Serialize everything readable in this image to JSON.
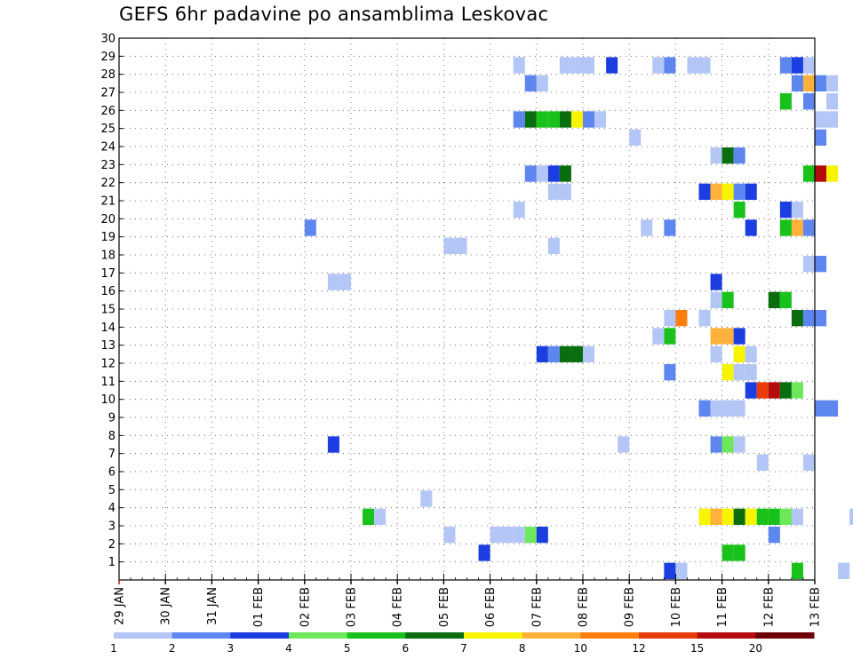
{
  "chart_data": {
    "type": "heatmap",
    "title": "GEFS 6hr padavine po ansamblima Leskovac",
    "x_tick_labels": [
      "29 JAN",
      "30 JAN",
      "31 JAN",
      "01 FEB",
      "02 FEB",
      "03 FEB",
      "04 FEB",
      "05 FEB",
      "06 FEB",
      "07 FEB",
      "08 FEB",
      "09 FEB",
      "10 FEB",
      "11 FEB",
      "12 FEB",
      "13 FEB"
    ],
    "y_tick_labels": [
      "1",
      "2",
      "3",
      "4",
      "5",
      "6",
      "7",
      "8",
      "9",
      "10",
      "11",
      "12",
      "13",
      "14",
      "15",
      "16",
      "17",
      "18",
      "19",
      "20",
      "21",
      "22",
      "23",
      "24",
      "25",
      "26",
      "27",
      "28",
      "29",
      "30"
    ],
    "ylim": [
      0,
      30
    ],
    "x_step_hours": 6,
    "steps_per_day": 4,
    "grid": true,
    "legend": {
      "placement": "bottom",
      "labels": [
        "1",
        "2",
        "3",
        "4",
        "5",
        "6",
        "7",
        "8",
        "10",
        "12",
        "15",
        "20"
      ],
      "colors": [
        "#b3c6f5",
        "#5e86ef",
        "#1c3ee0",
        "#6ce85a",
        "#18c21a",
        "#0a6e10",
        "#f6f400",
        "#ffb13a",
        "#ff7d0c",
        "#e83c0c",
        "#b40c0c",
        "#6e0008"
      ]
    },
    "cells": [
      {
        "x": "09 FEB 18z",
        "y": 0,
        "v": 3
      },
      {
        "x": "10 FEB 00z",
        "y": 0,
        "v": 1
      },
      {
        "x": "12 FEB 12z",
        "y": 0,
        "v": 5
      },
      {
        "x": "13 FEB 12z",
        "y": 0,
        "v": 1
      },
      {
        "x": "11 FEB 00z",
        "y": 1,
        "v": 5
      },
      {
        "x": "11 FEB 06z",
        "y": 1,
        "v": 5
      },
      {
        "x": "05 FEB 18z",
        "y": 1,
        "v": 3
      },
      {
        "x": "05 FEB 00z",
        "y": 2,
        "v": 1
      },
      {
        "x": "06 FEB 00z",
        "y": 2,
        "v": 1
      },
      {
        "x": "06 FEB 06z",
        "y": 2,
        "v": 1
      },
      {
        "x": "06 FEB 12z",
        "y": 2,
        "v": 1
      },
      {
        "x": "06 FEB 18z",
        "y": 2,
        "v": 4
      },
      {
        "x": "07 FEB 00z",
        "y": 2,
        "v": 3
      },
      {
        "x": "12 FEB 00z",
        "y": 2,
        "v": 2
      },
      {
        "x": "03 FEB 06z",
        "y": 3,
        "v": 5
      },
      {
        "x": "03 FEB 12z",
        "y": 3,
        "v": 1
      },
      {
        "x": "10 FEB 12z",
        "y": 3,
        "v": 7
      },
      {
        "x": "10 FEB 18z",
        "y": 3,
        "v": 8
      },
      {
        "x": "11 FEB 00z",
        "y": 3,
        "v": 7
      },
      {
        "x": "11 FEB 06z",
        "y": 3,
        "v": 6
      },
      {
        "x": "11 FEB 12z",
        "y": 3,
        "v": 7
      },
      {
        "x": "11 FEB 18z",
        "y": 3,
        "v": 5
      },
      {
        "x": "12 FEB 00z",
        "y": 3,
        "v": 5
      },
      {
        "x": "12 FEB 06z",
        "y": 3,
        "v": 4
      },
      {
        "x": "12 FEB 12z",
        "y": 3,
        "v": 1
      },
      {
        "x": "13 FEB 18z",
        "y": 3,
        "v": 1
      },
      {
        "x": "04 FEB 12z",
        "y": 4,
        "v": 1
      },
      {
        "x": "11 FEB 18z",
        "y": 6,
        "v": 1
      },
      {
        "x": "12 FEB 18z",
        "y": 6,
        "v": 1
      },
      {
        "x": "02 FEB 12z",
        "y": 7,
        "v": 3
      },
      {
        "x": "08 FEB 18z",
        "y": 7,
        "v": 1
      },
      {
        "x": "10 FEB 18z",
        "y": 7,
        "v": 2
      },
      {
        "x": "11 FEB 00z",
        "y": 7,
        "v": 4
      },
      {
        "x": "11 FEB 06z",
        "y": 7,
        "v": 1
      },
      {
        "x": "10 FEB 12z",
        "y": 9,
        "v": 2
      },
      {
        "x": "10 FEB 18z",
        "y": 9,
        "v": 1
      },
      {
        "x": "11 FEB 00z",
        "y": 9,
        "v": 1
      },
      {
        "x": "11 FEB 06z",
        "y": 9,
        "v": 1
      },
      {
        "x": "13 FEB 00z",
        "y": 9,
        "v": 2
      },
      {
        "x": "13 FEB 06z",
        "y": 9,
        "v": 2
      },
      {
        "x": "11 FEB 12z",
        "y": 10,
        "v": 3
      },
      {
        "x": "11 FEB 18z",
        "y": 10,
        "v": 12
      },
      {
        "x": "12 FEB 00z",
        "y": 10,
        "v": 15
      },
      {
        "x": "12 FEB 06z",
        "y": 10,
        "v": 6
      },
      {
        "x": "12 FEB 12z",
        "y": 10,
        "v": 4
      },
      {
        "x": "09 FEB 18z",
        "y": 11,
        "v": 2
      },
      {
        "x": "11 FEB 00z",
        "y": 11,
        "v": 7
      },
      {
        "x": "11 FEB 06z",
        "y": 11,
        "v": 1
      },
      {
        "x": "11 FEB 12z",
        "y": 11,
        "v": 1
      },
      {
        "x": "07 FEB 00z",
        "y": 12,
        "v": 3
      },
      {
        "x": "07 FEB 06z",
        "y": 12,
        "v": 2
      },
      {
        "x": "07 FEB 12z",
        "y": 12,
        "v": 6
      },
      {
        "x": "07 FEB 18z",
        "y": 12,
        "v": 6
      },
      {
        "x": "08 FEB 00z",
        "y": 12,
        "v": 1
      },
      {
        "x": "10 FEB 18z",
        "y": 12,
        "v": 1
      },
      {
        "x": "11 FEB 06z",
        "y": 12,
        "v": 7
      },
      {
        "x": "11 FEB 12z",
        "y": 12,
        "v": 1
      },
      {
        "x": "09 FEB 12z",
        "y": 13,
        "v": 1
      },
      {
        "x": "09 FEB 18z",
        "y": 13,
        "v": 5
      },
      {
        "x": "10 FEB 18z",
        "y": 13,
        "v": 8
      },
      {
        "x": "11 FEB 00z",
        "y": 13,
        "v": 8
      },
      {
        "x": "11 FEB 06z",
        "y": 13,
        "v": 3
      },
      {
        "x": "09 FEB 18z",
        "y": 14,
        "v": 1
      },
      {
        "x": "10 FEB 00z",
        "y": 14,
        "v": 10
      },
      {
        "x": "10 FEB 12z",
        "y": 14,
        "v": 1
      },
      {
        "x": "12 FEB 12z",
        "y": 14,
        "v": 6
      },
      {
        "x": "12 FEB 18z",
        "y": 14,
        "v": 2
      },
      {
        "x": "13 FEB 00z",
        "y": 14,
        "v": 2
      },
      {
        "x": "10 FEB 18z",
        "y": 15,
        "v": 1
      },
      {
        "x": "11 FEB 00z",
        "y": 15,
        "v": 5
      },
      {
        "x": "12 FEB 00z",
        "y": 15,
        "v": 6
      },
      {
        "x": "12 FEB 06z",
        "y": 15,
        "v": 5
      },
      {
        "x": "02 FEB 12z",
        "y": 16,
        "v": 1
      },
      {
        "x": "02 FEB 18z",
        "y": 16,
        "v": 1
      },
      {
        "x": "10 FEB 18z",
        "y": 16,
        "v": 3
      },
      {
        "x": "12 FEB 18z",
        "y": 17,
        "v": 1
      },
      {
        "x": "13 FEB 00z",
        "y": 17,
        "v": 2
      },
      {
        "x": "05 FEB 00z",
        "y": 18,
        "v": 1
      },
      {
        "x": "05 FEB 06z",
        "y": 18,
        "v": 1
      },
      {
        "x": "07 FEB 06z",
        "y": 18,
        "v": 1
      },
      {
        "x": "02 FEB 00z",
        "y": 19,
        "v": 2
      },
      {
        "x": "09 FEB 06z",
        "y": 19,
        "v": 1
      },
      {
        "x": "09 FEB 18z",
        "y": 19,
        "v": 2
      },
      {
        "x": "11 FEB 12z",
        "y": 19,
        "v": 3
      },
      {
        "x": "12 FEB 06z",
        "y": 19,
        "v": 5
      },
      {
        "x": "12 FEB 12z",
        "y": 19,
        "v": 8
      },
      {
        "x": "12 FEB 18z",
        "y": 19,
        "v": 2
      },
      {
        "x": "06 FEB 12z",
        "y": 20,
        "v": 1
      },
      {
        "x": "11 FEB 06z",
        "y": 20,
        "v": 5
      },
      {
        "x": "12 FEB 06z",
        "y": 20,
        "v": 3
      },
      {
        "x": "12 FEB 12z",
        "y": 20,
        "v": 1
      },
      {
        "x": "07 FEB 06z",
        "y": 21,
        "v": 1
      },
      {
        "x": "07 FEB 12z",
        "y": 21,
        "v": 1
      },
      {
        "x": "10 FEB 12z",
        "y": 21,
        "v": 3
      },
      {
        "x": "10 FEB 18z",
        "y": 21,
        "v": 8
      },
      {
        "x": "11 FEB 00z",
        "y": 21,
        "v": 7
      },
      {
        "x": "11 FEB 06z",
        "y": 21,
        "v": 2
      },
      {
        "x": "11 FEB 12z",
        "y": 21,
        "v": 3
      },
      {
        "x": "06 FEB 18z",
        "y": 22,
        "v": 2
      },
      {
        "x": "07 FEB 00z",
        "y": 22,
        "v": 1
      },
      {
        "x": "07 FEB 06z",
        "y": 22,
        "v": 3
      },
      {
        "x": "07 FEB 12z",
        "y": 22,
        "v": 6
      },
      {
        "x": "12 FEB 18z",
        "y": 22,
        "v": 5
      },
      {
        "x": "13 FEB 00z",
        "y": 22,
        "v": 15
      },
      {
        "x": "13 FEB 06z",
        "y": 22,
        "v": 7
      },
      {
        "x": "10 FEB 18z",
        "y": 23,
        "v": 1
      },
      {
        "x": "11 FEB 00z",
        "y": 23,
        "v": 6
      },
      {
        "x": "11 FEB 06z",
        "y": 23,
        "v": 2
      },
      {
        "x": "09 FEB 00z",
        "y": 24,
        "v": 1
      },
      {
        "x": "13 FEB 00z",
        "y": 24,
        "v": 2
      },
      {
        "x": "06 FEB 12z",
        "y": 25,
        "v": 2
      },
      {
        "x": "06 FEB 18z",
        "y": 25,
        "v": 6
      },
      {
        "x": "07 FEB 00z",
        "y": 25,
        "v": 5
      },
      {
        "x": "07 FEB 06z",
        "y": 25,
        "v": 5
      },
      {
        "x": "07 FEB 12z",
        "y": 25,
        "v": 6
      },
      {
        "x": "07 FEB 18z",
        "y": 25,
        "v": 7
      },
      {
        "x": "08 FEB 00z",
        "y": 25,
        "v": 2
      },
      {
        "x": "08 FEB 06z",
        "y": 25,
        "v": 1
      },
      {
        "x": "13 FEB 00z",
        "y": 25,
        "v": 1
      },
      {
        "x": "13 FEB 06z",
        "y": 25,
        "v": 1
      },
      {
        "x": "12 FEB 06z",
        "y": 26,
        "v": 5
      },
      {
        "x": "12 FEB 18z",
        "y": 26,
        "v": 2
      },
      {
        "x": "13 FEB 06z",
        "y": 26,
        "v": 1
      },
      {
        "x": "06 FEB 18z",
        "y": 27,
        "v": 2
      },
      {
        "x": "07 FEB 00z",
        "y": 27,
        "v": 1
      },
      {
        "x": "12 FEB 12z",
        "y": 27,
        "v": 2
      },
      {
        "x": "12 FEB 18z",
        "y": 27,
        "v": 8
      },
      {
        "x": "13 FEB 00z",
        "y": 27,
        "v": 2
      },
      {
        "x": "13 FEB 06z",
        "y": 27,
        "v": 1
      },
      {
        "x": "06 FEB 12z",
        "y": 28,
        "v": 1
      },
      {
        "x": "07 FEB 12z",
        "y": 28,
        "v": 1
      },
      {
        "x": "07 FEB 18z",
        "y": 28,
        "v": 1
      },
      {
        "x": "08 FEB 00z",
        "y": 28,
        "v": 1
      },
      {
        "x": "08 FEB 12z",
        "y": 28,
        "v": 3
      },
      {
        "x": "09 FEB 12z",
        "y": 28,
        "v": 1
      },
      {
        "x": "09 FEB 18z",
        "y": 28,
        "v": 2
      },
      {
        "x": "10 FEB 06z",
        "y": 28,
        "v": 1
      },
      {
        "x": "10 FEB 12z",
        "y": 28,
        "v": 1
      },
      {
        "x": "12 FEB 06z",
        "y": 28,
        "v": 2
      },
      {
        "x": "12 FEB 12z",
        "y": 28,
        "v": 3
      },
      {
        "x": "12 FEB 18z",
        "y": 28,
        "v": 1
      }
    ]
  }
}
